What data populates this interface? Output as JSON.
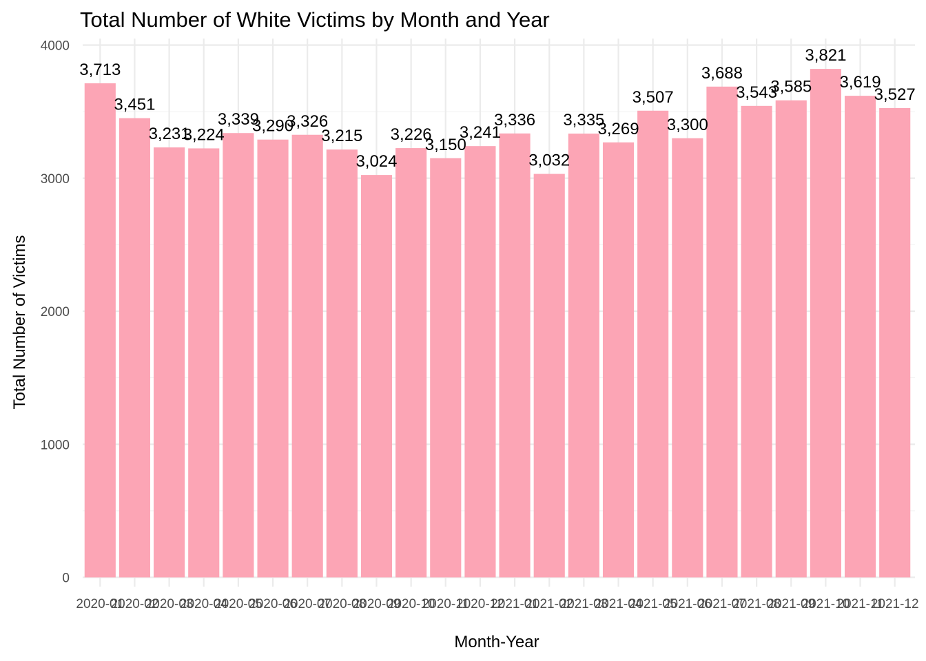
{
  "chart_data": {
    "type": "bar",
    "title": "Total Number of White Victims by Month and Year",
    "xlabel": "Month-Year",
    "ylabel": "Total Number of Victims",
    "categories": [
      "2020-01",
      "2020-02",
      "2020-03",
      "2020-04",
      "2020-05",
      "2020-06",
      "2020-07",
      "2020-08",
      "2020-09",
      "2020-10",
      "2020-11",
      "2020-12",
      "2021-01",
      "2021-02",
      "2021-03",
      "2021-04",
      "2021-05",
      "2021-06",
      "2021-07",
      "2021-08",
      "2021-09",
      "2021-10",
      "2021-11",
      "2021-12"
    ],
    "values": [
      3713,
      3451,
      3231,
      3224,
      3339,
      3290,
      3326,
      3215,
      3024,
      3226,
      3150,
      3241,
      3336,
      3032,
      3335,
      3269,
      3507,
      3300,
      3688,
      3543,
      3585,
      3821,
      3619,
      3527
    ],
    "value_labels": [
      "3,713",
      "3,451",
      "3,231",
      "3,224",
      "3,339",
      "3,290",
      "3,326",
      "3,215",
      "3,024",
      "3,226",
      "3,150",
      "3,241",
      "3,336",
      "3,032",
      "3,335",
      "3,269",
      "3,507",
      "3,300",
      "3,688",
      "3,543",
      "3,585",
      "3,821",
      "3,619",
      "3,527"
    ],
    "yticks": [
      0,
      1000,
      2000,
      3000,
      4000
    ],
    "ylim": [
      0,
      4000
    ],
    "bar_color": "#fca5b5",
    "grid": true,
    "legend": "none"
  }
}
